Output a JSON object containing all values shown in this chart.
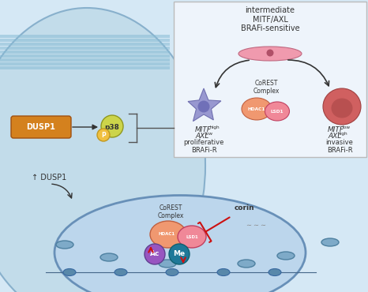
{
  "bg_color": "#d5e8f5",
  "cell_color": "#c2dcea",
  "box_bg": "#eef4fb",
  "box_border": "#bbbbbb",
  "dusp1_fill": "#d4811e",
  "p38_fill": "#ccd44a",
  "p_fill": "#f0c040",
  "hdac1_fill": "#f09870",
  "lsd1_fill": "#f08898",
  "ac_fill": "#9855c0",
  "me_fill": "#1e7898",
  "star_fill": "#9898d0",
  "flat_fill": "#f09aae",
  "round_fill": "#d06060",
  "text_dark": "#333333",
  "arrow_red": "#cc1111",
  "bracket_color": "#555555",
  "title_box": "intermediate\nMITF/AXL\nBRAFi-sensitive",
  "left_label_main": "MITF",
  "left_label_sup1": "high",
  "left_label_2": "AXL",
  "left_label_sup2": "low",
  "left_label_3": "proliferative\nBRAFi-R",
  "right_label_main": "MITF",
  "right_label_sup1": "low",
  "right_label_2": "AXL",
  "right_label_sup2": "high",
  "right_label_3": "invasive\nBRAFi-R",
  "corest_label": "CoREST\nComplex",
  "hdac1_label": "HDAC1",
  "lsd1_label": "LSD1",
  "dusp1_label": "DUSP1",
  "p38_label": "p38",
  "p_label": "P",
  "corin_label": "corin",
  "dusp1_up_label": "↑ DUSP1",
  "ac_label": "Ac",
  "me_label": "Me"
}
